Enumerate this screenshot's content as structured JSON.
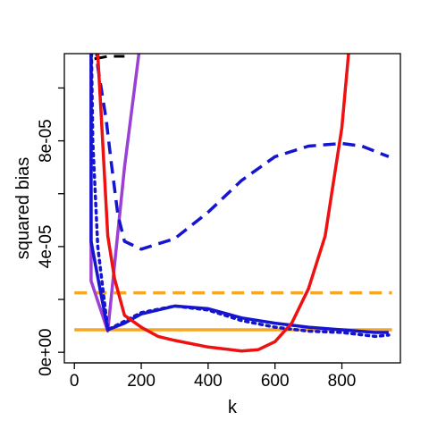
{
  "chart_data": {
    "type": "line",
    "title": "",
    "xlabel": "k",
    "ylabel": "squared bias",
    "xlim": [
      -30,
      975
    ],
    "ylim": [
      -4e-06,
      0.000113
    ],
    "x_ticks": [
      {
        "value": 0,
        "label": "0"
      },
      {
        "value": 200,
        "label": "200"
      },
      {
        "value": 400,
        "label": "400"
      },
      {
        "value": 600,
        "label": "600"
      },
      {
        "value": 800,
        "label": "800"
      }
    ],
    "y_ticks_labeled": [
      {
        "value": 0,
        "label": "0e+00"
      },
      {
        "value": 4e-05,
        "label": "4e-05"
      },
      {
        "value": 8e-05,
        "label": "8e-05"
      }
    ],
    "y_ticks_minor": [
      2e-05,
      6e-05,
      0.0001
    ],
    "grid": false,
    "series": [
      {
        "color": "#f5a623",
        "dash": "dashed",
        "width": 3.5,
        "points": [
          [
            0,
            2.25e-05
          ],
          [
            950,
            2.25e-05
          ]
        ]
      },
      {
        "color": "#f5a623",
        "dash": "solid",
        "width": 3.5,
        "points": [
          [
            0,
            8.5e-06
          ],
          [
            950,
            8.5e-06
          ]
        ]
      },
      {
        "color": "#9b3fd6",
        "dash": "solid",
        "width": 3.5,
        "points": [
          [
            50,
            0.000124
          ],
          [
            50,
            2.7e-05
          ],
          [
            100,
            8e-06
          ],
          [
            150,
            7e-05
          ],
          [
            205,
            0.000125
          ]
        ]
      },
      {
        "color": "#000000",
        "dash": "dashed",
        "width": 3,
        "points": [
          [
            60,
            0.000111
          ],
          [
            100,
            0.000112
          ],
          [
            150,
            0.000112
          ]
        ]
      },
      {
        "color": "#1515d0",
        "dash": "dashed",
        "width": 3.5,
        "points": [
          [
            60,
            0.000124
          ],
          [
            70,
            0.000108
          ],
          [
            80,
            0.0001
          ],
          [
            95,
            8.8e-05
          ],
          [
            110,
            7.2e-05
          ],
          [
            130,
            5.2e-05
          ],
          [
            150,
            4.2e-05
          ],
          [
            200,
            3.9e-05
          ],
          [
            300,
            4.3e-05
          ],
          [
            400,
            5.3e-05
          ],
          [
            500,
            6.5e-05
          ],
          [
            600,
            7.4e-05
          ],
          [
            700,
            7.8e-05
          ],
          [
            800,
            7.9e-05
          ],
          [
            860,
            7.8e-05
          ],
          [
            940,
            7.4e-05
          ]
        ]
      },
      {
        "color": "#1515d0",
        "dash": "dotted",
        "width": 3.5,
        "points": [
          [
            50,
            0.000124
          ],
          [
            55,
            8e-05
          ],
          [
            70,
            4e-05
          ],
          [
            100,
            8.5e-06
          ],
          [
            200,
            1.5e-05
          ],
          [
            300,
            1.75e-05
          ],
          [
            400,
            1.6e-05
          ],
          [
            500,
            1.2e-05
          ],
          [
            600,
            9.5e-06
          ],
          [
            700,
            8e-06
          ],
          [
            800,
            7.5e-06
          ],
          [
            900,
            6e-06
          ],
          [
            940,
            6.5e-06
          ]
        ]
      },
      {
        "color": "#1515d0",
        "dash": "solid",
        "width": 3.5,
        "points": [
          [
            50,
            0.000124
          ],
          [
            50,
            4.2e-05
          ],
          [
            75,
            2.5e-05
          ],
          [
            100,
            8.5e-06
          ],
          [
            150,
            1.1e-05
          ],
          [
            200,
            1.45e-05
          ],
          [
            300,
            1.75e-05
          ],
          [
            400,
            1.65e-05
          ],
          [
            500,
            1.3e-05
          ],
          [
            600,
            1.1e-05
          ],
          [
            700,
            9.5e-06
          ],
          [
            800,
            8.5e-06
          ],
          [
            900,
            7.5e-06
          ],
          [
            940,
            7.5e-06
          ]
        ]
      },
      {
        "color": "#ee1111",
        "dash": "solid",
        "width": 3.5,
        "points": [
          [
            65,
            0.000124
          ],
          [
            80,
            9e-05
          ],
          [
            100,
            4.4e-05
          ],
          [
            120,
            2.8e-05
          ],
          [
            150,
            1.4e-05
          ],
          [
            200,
            9.5e-06
          ],
          [
            250,
            6e-06
          ],
          [
            300,
            4.5e-06
          ],
          [
            400,
            2e-06
          ],
          [
            500,
            5e-07
          ],
          [
            550,
            1e-06
          ],
          [
            600,
            4e-06
          ],
          [
            650,
            1.1e-05
          ],
          [
            700,
            2.4e-05
          ],
          [
            750,
            4.4e-05
          ],
          [
            800,
            8.5e-05
          ],
          [
            820,
            0.000113
          ]
        ]
      }
    ]
  }
}
